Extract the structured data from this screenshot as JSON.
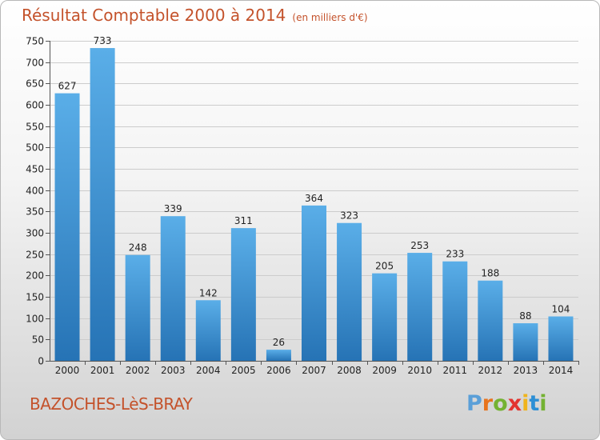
{
  "title": "Résultat Comptable 2000 à 2014",
  "subtitle": "(en milliers d'€)",
  "location": "BAZOCHES-LèS-BRAY",
  "logo": {
    "text": "Proxiti",
    "letters": [
      "P",
      "r",
      "o",
      "x",
      "i",
      "t",
      "i"
    ],
    "colors": [
      "#5a9fd8",
      "#e8731c",
      "#74b232",
      "#e3342f",
      "#f0b41c",
      "#2d8fd5",
      "#74b232"
    ]
  },
  "colors": {
    "bar_light": "#5aaee8",
    "bar_dark": "#2673b5",
    "title": "#c4522b",
    "grid": "#cccccc"
  },
  "chart_data": {
    "type": "bar",
    "title": "Résultat Comptable 2000 à 2014",
    "subtitle": "(en milliers d'€)",
    "xlabel": "",
    "ylabel": "",
    "categories": [
      "2000",
      "2001",
      "2002",
      "2003",
      "2004",
      "2005",
      "2006",
      "2007",
      "2008",
      "2009",
      "2010",
      "2011",
      "2012",
      "2013",
      "2014"
    ],
    "values": [
      627,
      733,
      248,
      339,
      142,
      311,
      26,
      364,
      323,
      205,
      253,
      233,
      188,
      88,
      104
    ],
    "ylim": [
      0,
      750
    ],
    "yticks": [
      0,
      50,
      100,
      150,
      200,
      250,
      300,
      350,
      400,
      450,
      500,
      550,
      600,
      650,
      700,
      750
    ],
    "grid": true,
    "data_labels": true
  }
}
